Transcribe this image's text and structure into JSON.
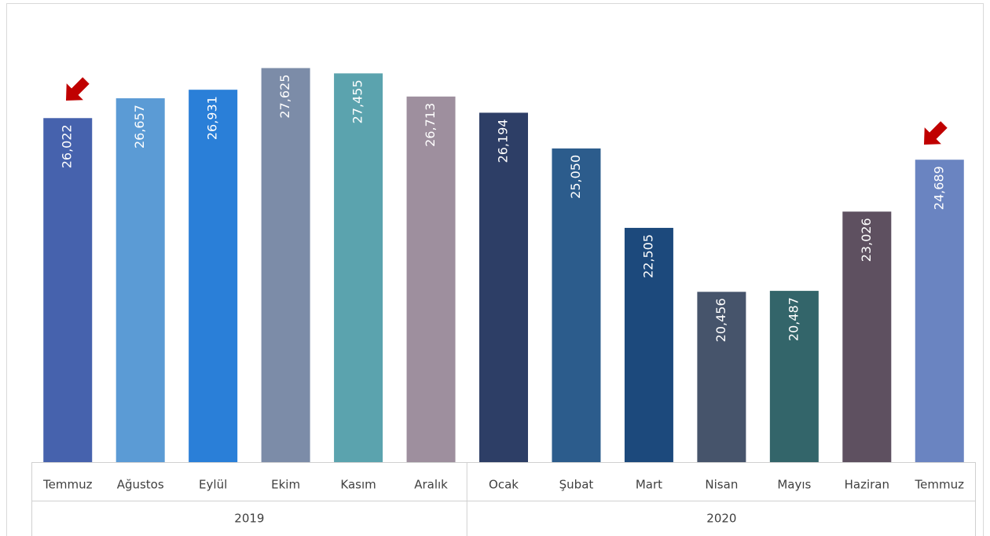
{
  "chart_data": {
    "type": "bar",
    "categories": [
      "Temmuz",
      "Ağustos",
      "Eylül",
      "Ekim",
      "Kasım",
      "Aralık",
      "Ocak",
      "Şubat",
      "Mart",
      "Nisan",
      "Mayıs",
      "Haziran",
      "Temmuz"
    ],
    "groups": [
      {
        "name": "2019",
        "size": 6
      },
      {
        "name": "2020",
        "size": 7
      }
    ],
    "values": [
      26022,
      26657,
      26931,
      27625,
      27455,
      26713,
      26194,
      25050,
      22505,
      20456,
      20487,
      23026,
      24689
    ],
    "value_labels": [
      "26,022",
      "26,657",
      "26,931",
      "27,625",
      "27,455",
      "26,713",
      "26,194",
      "25,050",
      "22,505",
      "20,456",
      "20,487",
      "23,026",
      "24,689"
    ],
    "colors": [
      "#4662ad",
      "#5b9bd5",
      "#2a7fd8",
      "#7c8ca8",
      "#5ba3ae",
      "#9e8f9e",
      "#2d3e66",
      "#2c5c8c",
      "#1c497c",
      "#46546b",
      "#33656a",
      "#5e5060",
      "#6a84c1"
    ],
    "ylim": [
      15000,
      29000
    ]
  }
}
